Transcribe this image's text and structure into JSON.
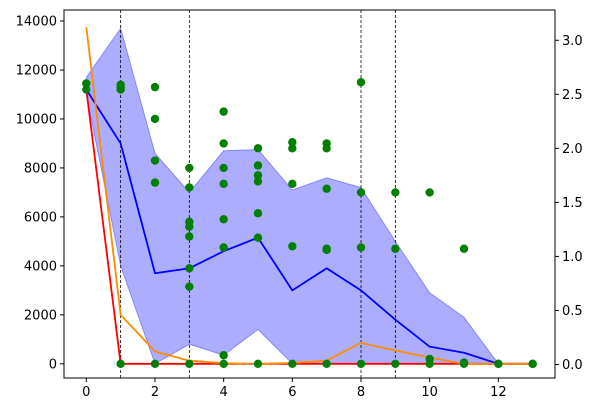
{
  "chart_data": {
    "type": "line",
    "title": "",
    "xlabel": "",
    "ylabel": "",
    "y2label": "",
    "grid": false,
    "xlim": [
      -0.65,
      13.65
    ],
    "ylim": [
      -580,
      14450
    ],
    "y2lim": [
      -0.125,
      3.28
    ],
    "x_ticks": [
      0,
      2,
      4,
      6,
      8,
      10,
      12
    ],
    "y_ticks": [
      0,
      2000,
      4000,
      6000,
      8000,
      10000,
      12000,
      14000
    ],
    "y2_ticks": [
      0.0,
      0.5,
      1.0,
      1.5,
      2.0,
      2.5,
      3.0
    ],
    "vlines": [
      1,
      3,
      8,
      9
    ],
    "band": {
      "x": [
        0,
        1,
        2,
        3,
        4,
        5,
        6,
        7,
        8,
        9,
        10,
        11,
        12,
        13
      ],
      "lower": [
        11000,
        4000,
        0,
        800,
        350,
        1400,
        0,
        0,
        0,
        0,
        0,
        0,
        0,
        0
      ],
      "upper": [
        11700,
        13700,
        8600,
        7000,
        8700,
        8750,
        7100,
        7600,
        7200,
        5000,
        2900,
        1900,
        0,
        0
      ]
    },
    "series": [
      {
        "axis": "left",
        "color": "#0000ff",
        "x": [
          0,
          1,
          2,
          3,
          4,
          5,
          6,
          7,
          8,
          9,
          10,
          11,
          12,
          13
        ],
        "y": [
          11200,
          9000,
          3700,
          3900,
          4600,
          5150,
          3000,
          3900,
          3000,
          1800,
          700,
          450,
          0,
          0
        ]
      },
      {
        "axis": "left",
        "color": "#ff0000",
        "x": [
          0,
          1,
          2,
          3,
          4,
          5,
          6,
          7,
          8,
          9,
          10,
          11,
          12,
          13
        ],
        "y": [
          11200,
          0,
          0,
          0,
          0,
          0,
          0,
          0,
          0,
          0,
          0,
          0,
          0,
          0
        ]
      },
      {
        "axis": "right",
        "color": "#ff8c00",
        "x": [
          0,
          1,
          2,
          3,
          4,
          5,
          6,
          7,
          8,
          9,
          10,
          11,
          12,
          13
        ],
        "y": [
          3.12,
          0.46,
          0.12,
          0.035,
          0.012,
          0.004,
          0.015,
          0.035,
          0.2,
          0.13,
          0.065,
          0.005,
          0.005,
          0.005
        ]
      }
    ],
    "scatter": [
      {
        "axis": "left",
        "color": "#008000",
        "points": [
          [
            0,
            11450
          ],
          [
            0,
            11200
          ],
          [
            1,
            11400
          ],
          [
            1,
            11300
          ],
          [
            1,
            11200
          ],
          [
            1,
            0
          ],
          [
            2,
            11300
          ],
          [
            2,
            10000
          ],
          [
            2,
            8300
          ],
          [
            2,
            7400
          ],
          [
            2,
            0
          ],
          [
            3,
            8000
          ],
          [
            3,
            7200
          ],
          [
            3,
            5800
          ],
          [
            3,
            5600
          ],
          [
            3,
            5200
          ],
          [
            3,
            3900
          ],
          [
            3,
            3150
          ],
          [
            3,
            0
          ],
          [
            4,
            10300
          ],
          [
            4,
            9000
          ],
          [
            4,
            8000
          ],
          [
            4,
            7350
          ],
          [
            4,
            5900
          ],
          [
            4,
            4750
          ],
          [
            4,
            350
          ],
          [
            4,
            0
          ],
          [
            5,
            8800
          ],
          [
            5,
            8100
          ],
          [
            5,
            7700
          ],
          [
            5,
            7450
          ],
          [
            5,
            6150
          ],
          [
            5,
            5150
          ],
          [
            5,
            0
          ],
          [
            6,
            9050
          ],
          [
            6,
            8800
          ],
          [
            6,
            7350
          ],
          [
            6,
            4800
          ],
          [
            6,
            0
          ],
          [
            7,
            9000
          ],
          [
            7,
            8800
          ],
          [
            7,
            7150
          ],
          [
            7,
            4700
          ],
          [
            7,
            4650
          ],
          [
            7,
            0
          ],
          [
            8,
            11500
          ],
          [
            8,
            7000
          ],
          [
            8,
            4750
          ],
          [
            8,
            0
          ],
          [
            9,
            7000
          ],
          [
            9,
            4700
          ],
          [
            9,
            0
          ],
          [
            10,
            7000
          ],
          [
            10,
            200
          ],
          [
            10,
            0
          ],
          [
            11,
            4700
          ],
          [
            11,
            50
          ],
          [
            11,
            0
          ],
          [
            12,
            0
          ],
          [
            12,
            0
          ],
          [
            13,
            0
          ],
          [
            13,
            0
          ]
        ]
      }
    ]
  }
}
